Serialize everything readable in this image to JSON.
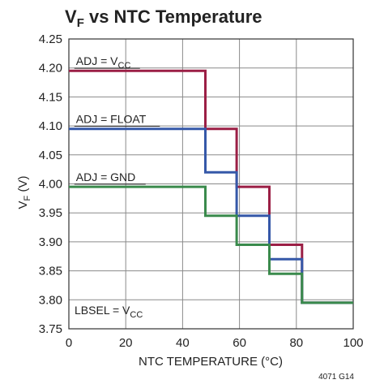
{
  "chart_data": {
    "type": "line",
    "title": {
      "main": "V",
      "sub": "F",
      "rest": " vs NTC Temperature"
    },
    "xlabel": "NTC TEMPERATURE (°C)",
    "ylabel": {
      "main": "V",
      "sub": "F",
      "rest": " (V)"
    },
    "xlim": [
      0,
      100
    ],
    "ylim": [
      3.75,
      4.25
    ],
    "x_ticks": [
      "0",
      "20",
      "40",
      "60",
      "80",
      "100"
    ],
    "y_ticks": [
      "4.25",
      "4.20",
      "4.15",
      "4.10",
      "4.05",
      "4.00",
      "3.95",
      "3.90",
      "3.85",
      "3.80",
      "3.75"
    ],
    "grid": true,
    "series": [
      {
        "color": "#9b1f45",
        "x": [
          0,
          48,
          48,
          59,
          59,
          70.5,
          70.5,
          82,
          82,
          100
        ],
        "y": [
          4.195,
          4.195,
          4.095,
          4.095,
          3.995,
          3.995,
          3.895,
          3.895,
          3.795,
          3.795
        ]
      },
      {
        "color": "#3558a8",
        "x": [
          0,
          48,
          48,
          59,
          59,
          70.5,
          70.5,
          82,
          82,
          100
        ],
        "y": [
          4.095,
          4.095,
          4.02,
          4.02,
          3.945,
          3.945,
          3.87,
          3.87,
          3.795,
          3.795
        ]
      },
      {
        "color": "#3a8a4c",
        "x": [
          0,
          48,
          48,
          59,
          59,
          70.5,
          70.5,
          82,
          82,
          100
        ],
        "y": [
          3.995,
          3.995,
          3.945,
          3.945,
          3.895,
          3.895,
          3.845,
          3.845,
          3.795,
          3.795
        ]
      }
    ],
    "annotations": [
      {
        "main": "ADJ = V",
        "sub": "CC",
        "x": 2.5,
        "y": 4.205,
        "underline_to": 25
      },
      {
        "main": "ADJ = FLOAT",
        "sub": "",
        "x": 2.5,
        "y": 4.105,
        "underline_to": 32
      },
      {
        "main": "ADJ = GND",
        "sub": "",
        "x": 2.5,
        "y": 4.005,
        "underline_to": 27
      },
      {
        "main": "LBSEL = V",
        "sub": "CC",
        "x": 2,
        "y": 3.775,
        "underline_to": null
      }
    ],
    "figure_code": "4071 G14"
  }
}
